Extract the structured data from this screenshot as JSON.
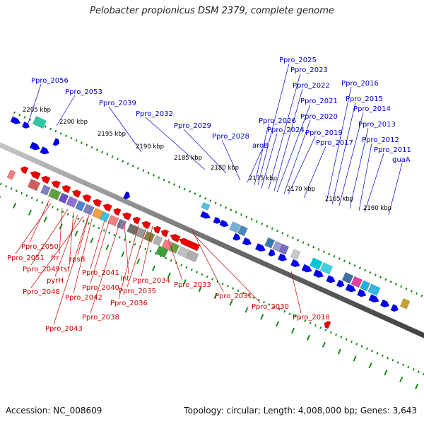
{
  "title": "Pelobacter propionicus DSM 2379, complete genome",
  "footer": {
    "accession": "Accession: NC_008609",
    "summary": "Topology: circular; Length: 4,008,000 bp; Genes: 3,643"
  },
  "colors": {
    "forward_gene": "#0000ee",
    "reverse_gene": "#ee0000",
    "forward_label": "#0000cc",
    "reverse_label": "#cc0000",
    "backbone": "#707070",
    "tick": "#1a8a1a",
    "ruler_text": "#000000"
  },
  "ruler": [
    {
      "label": "2205 kbp"
    },
    {
      "label": "2200 kbp"
    },
    {
      "label": "2195 kbp"
    },
    {
      "label": "2190 kbp"
    },
    {
      "label": "2185 kbp"
    },
    {
      "label": "2180 kbp"
    },
    {
      "label": "2175 kbp"
    },
    {
      "label": "2170 kbp"
    },
    {
      "label": "2165 kbp"
    },
    {
      "label": "2160 kbp"
    }
  ],
  "forward_labels": [
    "Ppro_2056",
    "Ppro_2053",
    "Ppro_2039",
    "Ppro_2032",
    "Ppro_2029",
    "Ppro_2028",
    "aroB",
    "Ppro_2026",
    "Ppro_2025",
    "Ppro_2024",
    "Ppro_2023",
    "Ppro_2022",
    "Ppro_2021",
    "Ppro_2020",
    "Ppro_2019",
    "Ppro_2017",
    "Ppro_2016",
    "Ppro_2015",
    "Ppro_2014",
    "Ppro_2013",
    "Ppro_2012",
    "Ppro_2011",
    "guaA"
  ],
  "reverse_labels": [
    "Ppro_2050",
    "Ppro_2051",
    "frr",
    "Ppro_2049",
    "tsf",
    "rpsB",
    "pyrH",
    "Ppro_2048",
    "Ppro_2041",
    "Int",
    "Ppro_2040",
    "Ppro_2042",
    "Ppro_2034",
    "Ppro_2035",
    "Ppro_2036",
    "Ppro_2038",
    "Ppro_2043",
    "Ppro_2033",
    "Ppro_2031",
    "Ppro_2030",
    "Ppro_2018"
  ]
}
